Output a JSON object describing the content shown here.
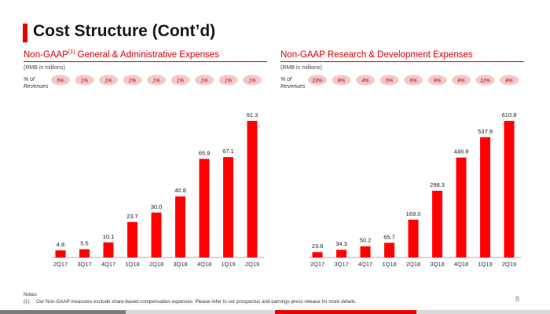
{
  "slide": {
    "title": "Cost Structure (Cont’d)",
    "page_number": "8",
    "accent_color": "#e60000"
  },
  "panels": {
    "left": {
      "title": "Non-GAAP",
      "title_superscript": "(1)",
      "title_rest": " General & Administrative Expenses",
      "unit": "(RMB in millions)",
      "revenue_label": "% of Revenues",
      "revenue_pcts": [
        "5%",
        "1%",
        "1%",
        "2%",
        "1%",
        "1%",
        "1%",
        "1%",
        "1%"
      ]
    },
    "right": {
      "title": "Non-GAAP Research & Development Expenses",
      "unit": "(RMB in millions)",
      "revenue_label": "% of Revenues",
      "revenue_pcts": [
        "23%",
        "8%",
        "4%",
        "5%",
        "6%",
        "9%",
        "8%",
        "12%",
        "8%"
      ]
    }
  },
  "notes": {
    "heading": "Notes:",
    "items": [
      {
        "num": "(1)",
        "text": "Our Non-GAAP measures exclude share-based compensation expenses. Please refer to our prospectus and earnings press release for more details."
      }
    ]
  },
  "colors": {
    "bar": "#ff0000",
    "pill_fill": "#f5c7c7",
    "pill_text": "#a00000",
    "footer_gray": "#7a7a7a",
    "footer_red": "#e60000",
    "footer_light": "#d9d9d9"
  },
  "chart_data": [
    {
      "type": "bar",
      "title": "Non-GAAP(1) General & Administrative Expenses",
      "ylabel": "(RMB in millions)",
      "categories": [
        "2Q17",
        "3Q17",
        "4Q17",
        "1Q18",
        "2Q18",
        "3Q18",
        "4Q18",
        "1Q19",
        "2Q19"
      ],
      "values": [
        4.8,
        5.5,
        10.1,
        23.7,
        30.0,
        40.8,
        65.9,
        67.1,
        91.3
      ],
      "value_labels": [
        "4.8",
        "5.5",
        "10.1",
        "23.7",
        "30.0",
        "40.8",
        "65.9",
        "67.1",
        "91.3"
      ],
      "ylim": [
        0,
        91.3
      ],
      "grid": false,
      "legend": "none"
    },
    {
      "type": "bar",
      "title": "Non-GAAP Research & Development Expenses",
      "ylabel": "(RMB in millions)",
      "categories": [
        "2Q17",
        "3Q17",
        "4Q17",
        "1Q18",
        "2Q18",
        "3Q18",
        "4Q18",
        "1Q19",
        "2Q19"
      ],
      "values": [
        23.8,
        34.3,
        50.2,
        65.7,
        169.0,
        298.3,
        446.8,
        537.9,
        610.8
      ],
      "value_labels": [
        "23.8",
        "34.3",
        "50.2",
        "65.7",
        "169.0",
        "298.3",
        "446.8",
        "537.9",
        "610.8"
      ],
      "ylim": [
        0,
        610.8
      ],
      "grid": false,
      "legend": "none"
    }
  ]
}
